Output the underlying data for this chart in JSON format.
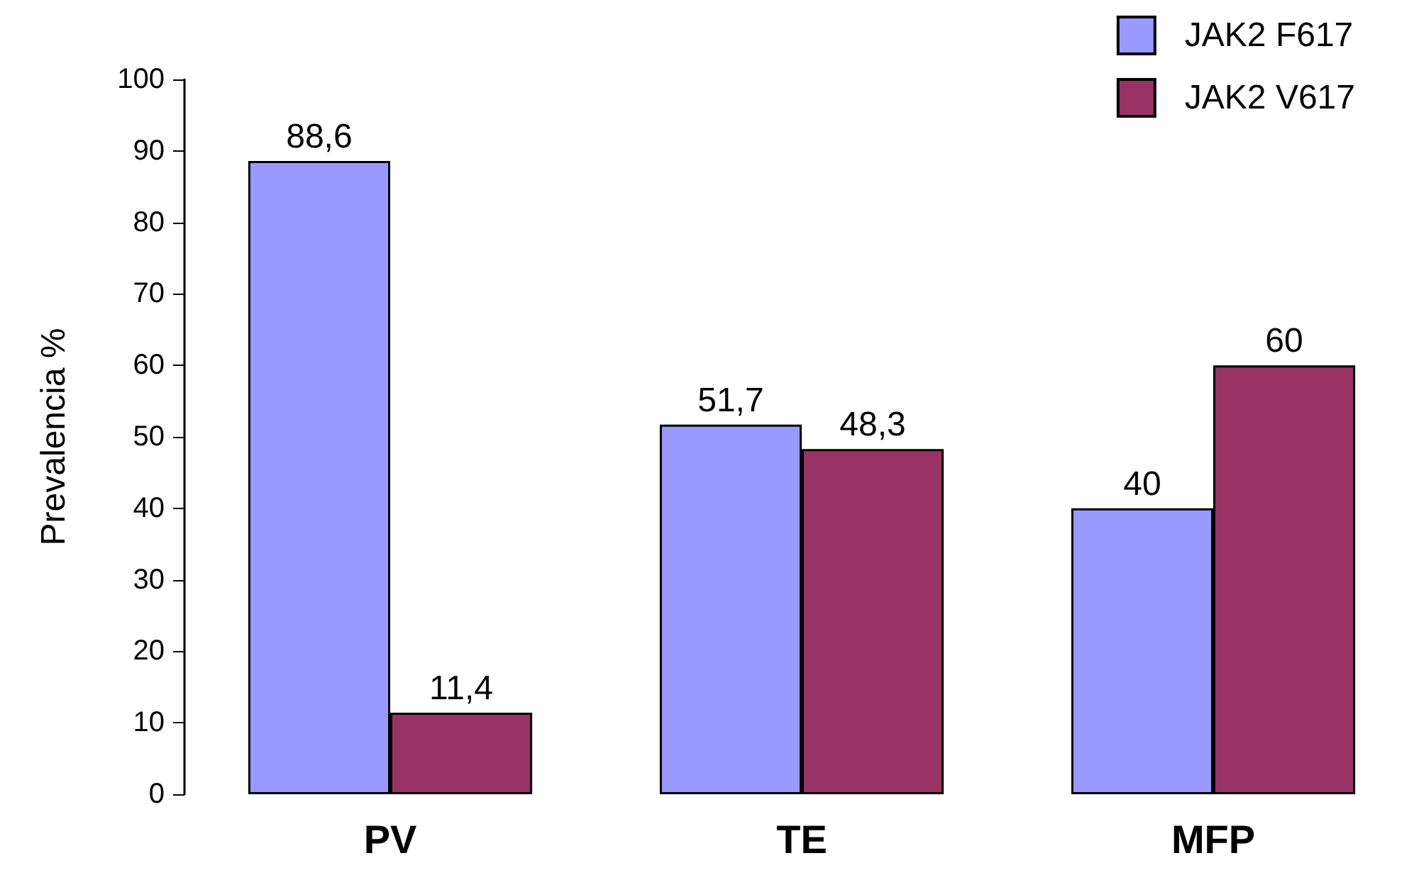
{
  "chart_data": {
    "type": "bar",
    "ylabel": "Prevalencia %",
    "categories": [
      "PV",
      "TE",
      "MFP"
    ],
    "series": [
      {
        "name": "JAK2 F617",
        "color": "#9999ff",
        "values": [
          88.6,
          51.7,
          40
        ],
        "value_labels": [
          "88,6",
          "51,7",
          "40"
        ]
      },
      {
        "name": "JAK2 V617",
        "color": "#993366",
        "values": [
          11.4,
          48.3,
          60
        ],
        "value_labels": [
          "11,4",
          "48,3",
          "60"
        ]
      }
    ],
    "ylim": [
      0,
      100
    ],
    "yticks": [
      0,
      10,
      20,
      30,
      40,
      50,
      60,
      70,
      80,
      90,
      100
    ],
    "grid": false,
    "legend": "top right"
  }
}
